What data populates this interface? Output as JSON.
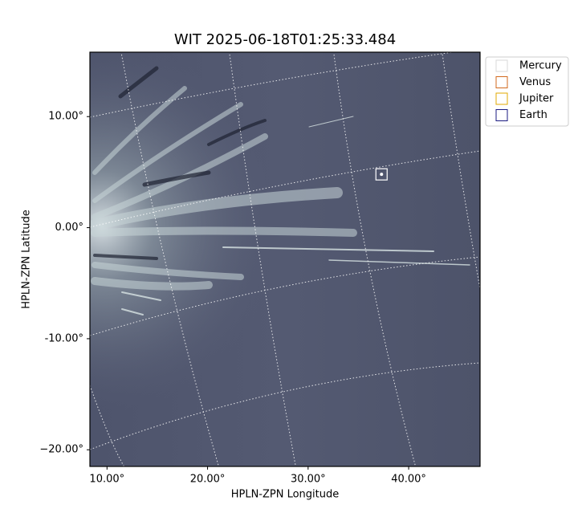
{
  "chart_data": {
    "type": "image",
    "title": "WIT 2025-06-18T01:25:33.484",
    "x_label": "HPLN-ZPN Longitude",
    "y_label": "HPLN-ZPN Latitude",
    "xlim": [
      8.3,
      47.1
    ],
    "ylim": [
      -21.5,
      15.8
    ],
    "xticks": [
      {
        "value": 10,
        "label": "10.00°"
      },
      {
        "value": 20,
        "label": "20.00°"
      },
      {
        "value": 30,
        "label": "30.00°"
      },
      {
        "value": 40,
        "label": "40.00°"
      }
    ],
    "yticks": [
      {
        "value": 10,
        "label": "10.00°"
      },
      {
        "value": 0,
        "label": "0.00°"
      },
      {
        "value": -10,
        "label": "-10.00°"
      },
      {
        "value": -20,
        "label": "−20.00°"
      }
    ],
    "series": [
      {
        "name": "Mercury",
        "color": "#d8d8d8",
        "x": [],
        "y": []
      },
      {
        "name": "Venus",
        "color": "#d2691e",
        "x": [],
        "y": []
      },
      {
        "name": "Jupiter",
        "color": "#e0a800",
        "x": [],
        "y": []
      },
      {
        "name": "Earth",
        "color": "#1a1a80",
        "x": [
          37.3
        ],
        "y": [
          4.8
        ]
      }
    ]
  }
}
